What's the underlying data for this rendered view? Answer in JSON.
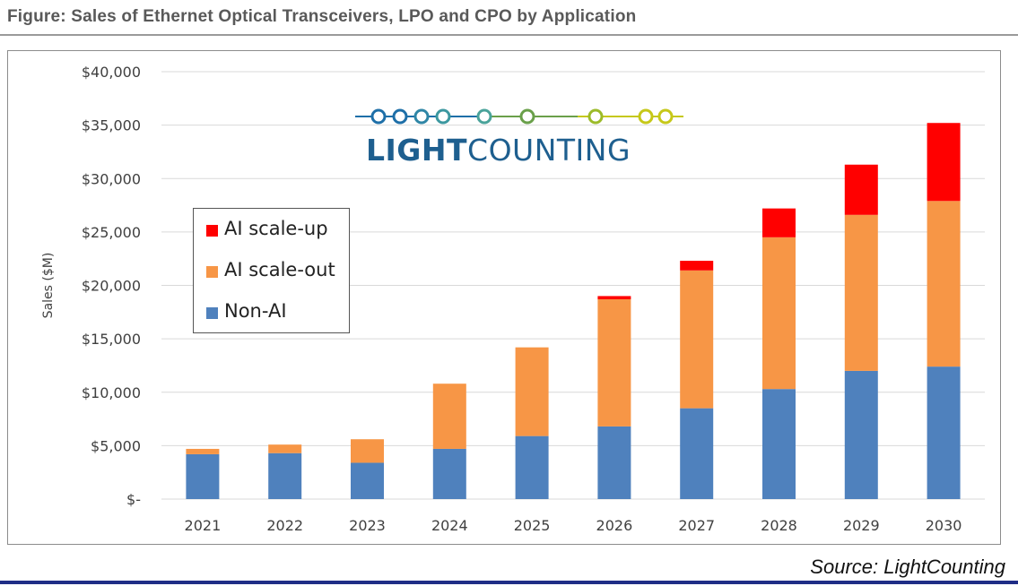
{
  "figure_title": "Figure: Sales of Ethernet Optical Transceivers, LPO and CPO by Application",
  "source": "Source: LightCounting",
  "logo": {
    "text_bold": "LIGHT",
    "text_regular": "COUNTING",
    "colors": [
      "#1e6fa8",
      "#4aa39a",
      "#7fb63a",
      "#c6c81a"
    ]
  },
  "colors": {
    "ai_scale_up": "#ff0000",
    "ai_scale_out": "#f79646",
    "non_ai": "#4f81bd",
    "grid": "#d9d9d9",
    "axis_text": "#404040"
  },
  "chart_data": {
    "type": "bar",
    "stacked": true,
    "title": "",
    "xlabel": "",
    "ylabel": "Sales ($M)",
    "ylim": [
      0,
      40000
    ],
    "y_ticks": [
      0,
      5000,
      10000,
      15000,
      20000,
      25000,
      30000,
      35000,
      40000
    ],
    "y_tick_labels": [
      "$-",
      "$5,000",
      "$10,000",
      "$15,000",
      "$20,000",
      "$25,000",
      "$30,000",
      "$35,000",
      "$40,000"
    ],
    "grid": true,
    "legend_position": "upper-left",
    "categories": [
      "2021",
      "2022",
      "2023",
      "2024",
      "2025",
      "2026",
      "2027",
      "2028",
      "2029",
      "2030"
    ],
    "series": [
      {
        "name": "Non-AI",
        "color": "#4f81bd",
        "values": [
          4200,
          4300,
          3400,
          4700,
          5900,
          6800,
          8500,
          10300,
          12000,
          12400
        ]
      },
      {
        "name": "AI scale-out",
        "color": "#f79646",
        "values": [
          500,
          800,
          2200,
          6100,
          8300,
          11900,
          12900,
          14200,
          14600,
          15500
        ]
      },
      {
        "name": "AI scale-up",
        "color": "#ff0000",
        "values": [
          0,
          0,
          0,
          0,
          0,
          300,
          900,
          2700,
          4700,
          7300
        ]
      }
    ],
    "legend_order": [
      "AI scale-up",
      "AI scale-out",
      "Non-AI"
    ]
  }
}
